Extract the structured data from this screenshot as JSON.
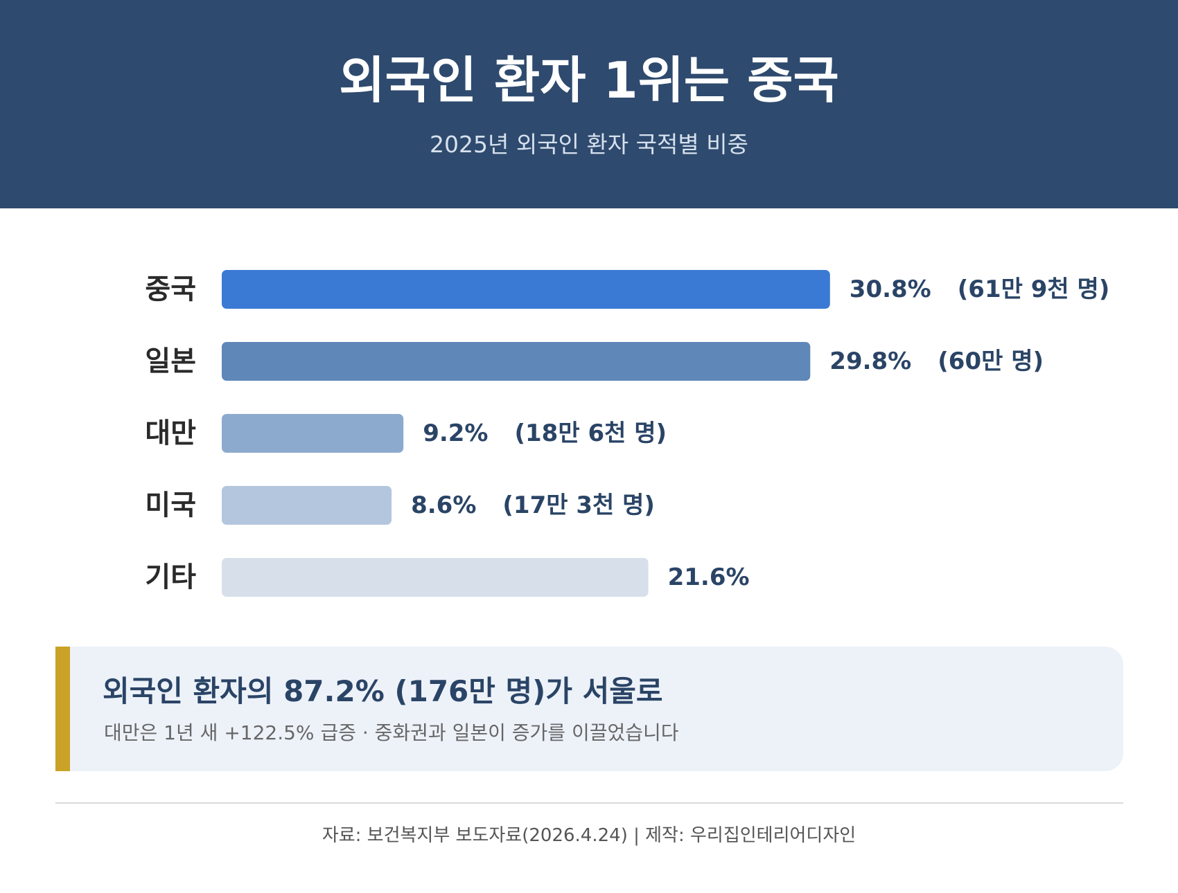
{
  "header": {
    "title": "외국인 환자 1위는 중국",
    "subtitle": "2025년 외국인 환자 국적별 비중",
    "background_color": "#2e4a6e"
  },
  "chart_data": {
    "type": "bar",
    "orientation": "horizontal",
    "categories": [
      "중국",
      "일본",
      "대만",
      "미국",
      "기타"
    ],
    "values": [
      30.8,
      29.8,
      9.2,
      8.6,
      21.6
    ],
    "value_labels": [
      "30.8%",
      "29.8%",
      "9.2%",
      "8.6%",
      "21.6%"
    ],
    "count_labels": [
      "(61만 9천 명)",
      "(60만 명)",
      "(18만 6천 명)",
      "(17만 3천 명)",
      ""
    ],
    "colors": [
      "#3a7ad5",
      "#5f87b8",
      "#8caacd",
      "#b4c6de",
      "#d7dfea"
    ],
    "xlim": [
      0,
      33
    ],
    "grid": false,
    "title": "",
    "xlabel": "",
    "ylabel": ""
  },
  "callout": {
    "headline": "외국인 환자의 87.2% (176만 명)가 서울로",
    "subtext": "대만은 1년 새 +122.5% 급증 · 중화권과 일본이 증가를 이끌었습니다",
    "accent_color": "#c9a227",
    "background_color": "#edf2f9"
  },
  "footer": {
    "text": "자료: 보건복지부 보도자료(2026.4.24)   |   제작: 우리집인테리어디자인"
  }
}
